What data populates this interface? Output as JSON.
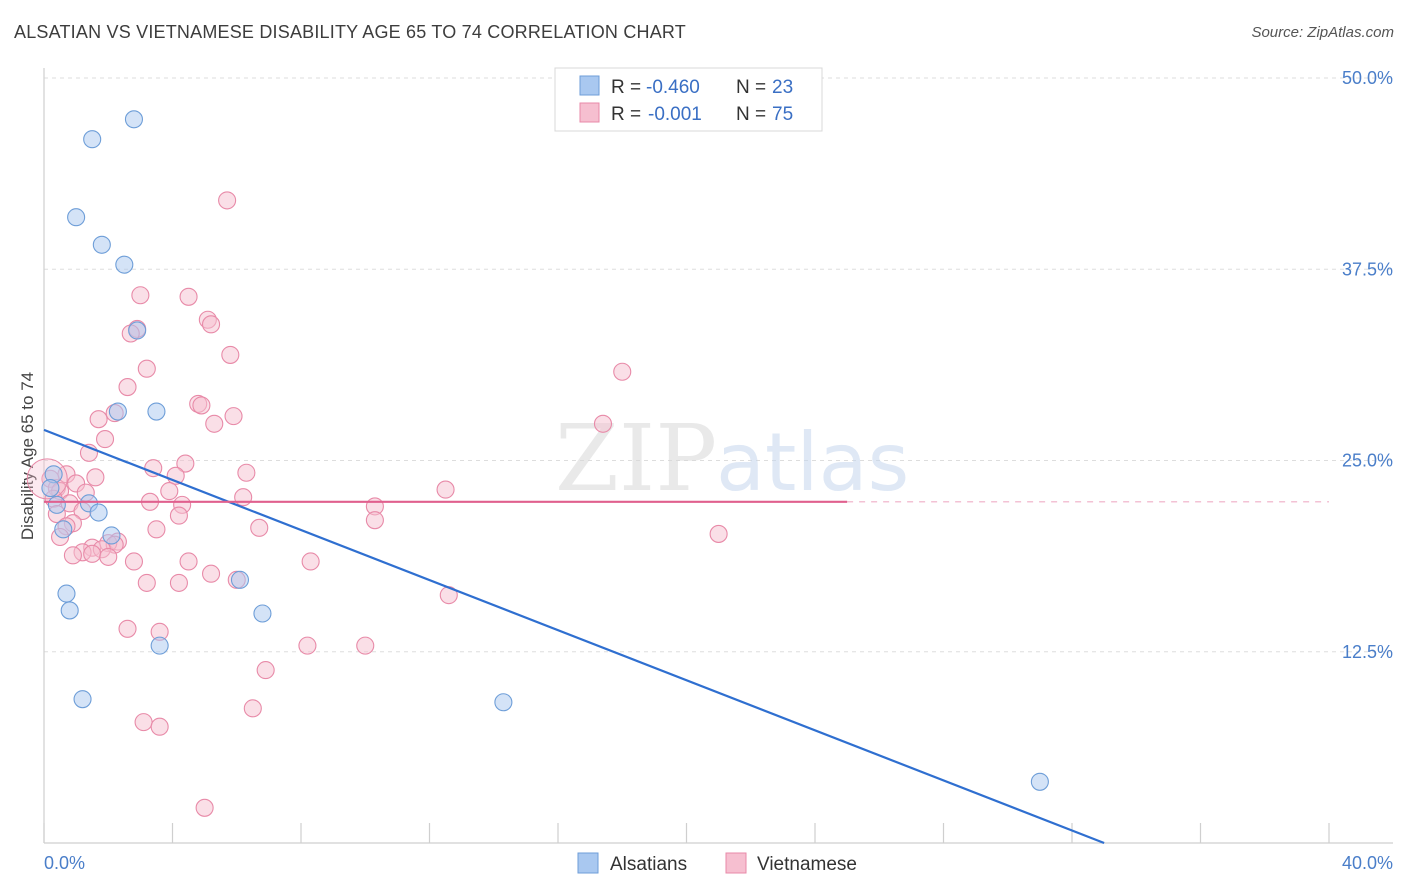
{
  "title": "ALSATIAN VS VIETNAMESE DISABILITY AGE 65 TO 74 CORRELATION CHART",
  "source": "Source: ZipAtlas.com",
  "watermark": {
    "zip": "ZIP",
    "atlas": "atlas"
  },
  "colors": {
    "alsatians_fill": "#a9c8f0",
    "alsatians_stroke": "#6e9ed8",
    "alsatians_line": "#2f6fd0",
    "vietnamese_fill": "#f6bfd0",
    "vietnamese_stroke": "#e88aa8",
    "vietnamese_line": "#e0608e",
    "tick_text": "#4a7ec9",
    "grid": "#dddddd"
  },
  "legend": {
    "rows": [
      {
        "r_label": "R = ",
        "r_value": "-0.460",
        "n_label": "N = ",
        "n_value": "23"
      },
      {
        "r_label": "R = ",
        "r_value": "-0.001",
        "n_label": "N = ",
        "n_value": "75"
      }
    ]
  },
  "chart_data": {
    "type": "scatter",
    "title": "ALSATIAN VS VIETNAMESE DISABILITY AGE 65 TO 74 CORRELATION CHART",
    "xlabel": "",
    "ylabel": "Disability Age 65 to 74",
    "xlim": [
      0,
      40
    ],
    "ylim": [
      0,
      50
    ],
    "x_tick_labels": [
      "0.0%",
      "40.0%"
    ],
    "y_ticks": [
      12.5,
      25.0,
      37.5,
      50.0
    ],
    "y_tick_labels": [
      "12.5%",
      "25.0%",
      "37.5%",
      "50.0%"
    ],
    "grid": true,
    "series": [
      {
        "name": "Alsatians",
        "R": -0.46,
        "N": 23,
        "trend": {
          "x": [
            0,
            33
          ],
          "y": [
            27.0,
            0
          ]
        },
        "points": [
          {
            "x": 1.5,
            "y": 46.0
          },
          {
            "x": 2.8,
            "y": 47.3
          },
          {
            "x": 1.0,
            "y": 40.9
          },
          {
            "x": 1.8,
            "y": 39.1
          },
          {
            "x": 2.5,
            "y": 37.8
          },
          {
            "x": 2.9,
            "y": 33.5
          },
          {
            "x": 2.3,
            "y": 28.2
          },
          {
            "x": 3.5,
            "y": 28.2
          },
          {
            "x": 0.3,
            "y": 24.1
          },
          {
            "x": 0.2,
            "y": 23.2
          },
          {
            "x": 0.4,
            "y": 22.1
          },
          {
            "x": 1.4,
            "y": 22.2
          },
          {
            "x": 1.7,
            "y": 21.6
          },
          {
            "x": 0.6,
            "y": 20.5
          },
          {
            "x": 2.1,
            "y": 20.1
          },
          {
            "x": 6.1,
            "y": 17.2
          },
          {
            "x": 0.7,
            "y": 16.3
          },
          {
            "x": 0.8,
            "y": 15.2
          },
          {
            "x": 6.8,
            "y": 15.0
          },
          {
            "x": 3.6,
            "y": 12.9
          },
          {
            "x": 1.2,
            "y": 9.4
          },
          {
            "x": 14.3,
            "y": 9.2
          },
          {
            "x": 31.0,
            "y": 4.0
          }
        ]
      },
      {
        "name": "Vietnamese",
        "R": -0.001,
        "N": 75,
        "trend": {
          "x": [
            0,
            25
          ],
          "y": [
            22.3,
            22.3
          ]
        },
        "points": [
          {
            "x": 5.7,
            "y": 42.0
          },
          {
            "x": 3.0,
            "y": 35.8
          },
          {
            "x": 4.5,
            "y": 35.7
          },
          {
            "x": 5.1,
            "y": 34.2
          },
          {
            "x": 5.2,
            "y": 33.9
          },
          {
            "x": 2.9,
            "y": 33.6
          },
          {
            "x": 2.7,
            "y": 33.3
          },
          {
            "x": 5.8,
            "y": 31.9
          },
          {
            "x": 3.2,
            "y": 31.0
          },
          {
            "x": 18.0,
            "y": 30.8
          },
          {
            "x": 2.6,
            "y": 29.8
          },
          {
            "x": 4.8,
            "y": 28.7
          },
          {
            "x": 4.9,
            "y": 28.6
          },
          {
            "x": 2.2,
            "y": 28.1
          },
          {
            "x": 5.9,
            "y": 27.9
          },
          {
            "x": 1.7,
            "y": 27.7
          },
          {
            "x": 5.3,
            "y": 27.4
          },
          {
            "x": 17.4,
            "y": 27.4
          },
          {
            "x": 1.9,
            "y": 26.4
          },
          {
            "x": 1.4,
            "y": 25.5
          },
          {
            "x": 4.4,
            "y": 24.8
          },
          {
            "x": 3.4,
            "y": 24.5
          },
          {
            "x": 6.3,
            "y": 24.2
          },
          {
            "x": 0.7,
            "y": 24.1
          },
          {
            "x": 4.1,
            "y": 24.0
          },
          {
            "x": 1.6,
            "y": 23.9
          },
          {
            "x": 0.2,
            "y": 23.8
          },
          {
            "x": 1.0,
            "y": 23.5
          },
          {
            "x": 0.4,
            "y": 23.2
          },
          {
            "x": 0.5,
            "y": 23.0
          },
          {
            "x": 12.5,
            "y": 23.1
          },
          {
            "x": 3.9,
            "y": 23.0
          },
          {
            "x": 1.3,
            "y": 22.9
          },
          {
            "x": 6.2,
            "y": 22.6
          },
          {
            "x": 0.3,
            "y": 22.5
          },
          {
            "x": 3.3,
            "y": 22.3
          },
          {
            "x": 0.8,
            "y": 22.2
          },
          {
            "x": 4.3,
            "y": 22.1
          },
          {
            "x": 10.3,
            "y": 22.0
          },
          {
            "x": 1.2,
            "y": 21.7
          },
          {
            "x": 0.4,
            "y": 21.5
          },
          {
            "x": 4.2,
            "y": 21.4
          },
          {
            "x": 10.3,
            "y": 21.1
          },
          {
            "x": 0.9,
            "y": 20.9
          },
          {
            "x": 0.7,
            "y": 20.7
          },
          {
            "x": 6.7,
            "y": 20.6
          },
          {
            "x": 3.5,
            "y": 20.5
          },
          {
            "x": 21.0,
            "y": 20.2
          },
          {
            "x": 0.5,
            "y": 20.0
          },
          {
            "x": 2.3,
            "y": 19.7
          },
          {
            "x": 2.0,
            "y": 19.6
          },
          {
            "x": 2.2,
            "y": 19.5
          },
          {
            "x": 1.5,
            "y": 19.3
          },
          {
            "x": 1.8,
            "y": 19.2
          },
          {
            "x": 1.2,
            "y": 19.0
          },
          {
            "x": 1.5,
            "y": 18.9
          },
          {
            "x": 0.9,
            "y": 18.8
          },
          {
            "x": 2.0,
            "y": 18.7
          },
          {
            "x": 2.8,
            "y": 18.4
          },
          {
            "x": 4.5,
            "y": 18.4
          },
          {
            "x": 8.3,
            "y": 18.4
          },
          {
            "x": 5.2,
            "y": 17.6
          },
          {
            "x": 6.0,
            "y": 17.2
          },
          {
            "x": 3.2,
            "y": 17.0
          },
          {
            "x": 4.2,
            "y": 17.0
          },
          {
            "x": 12.6,
            "y": 16.2
          },
          {
            "x": 2.6,
            "y": 14.0
          },
          {
            "x": 3.6,
            "y": 13.8
          },
          {
            "x": 8.2,
            "y": 12.9
          },
          {
            "x": 10.0,
            "y": 12.9
          },
          {
            "x": 6.9,
            "y": 11.3
          },
          {
            "x": 6.5,
            "y": 8.8
          },
          {
            "x": 3.1,
            "y": 7.9
          },
          {
            "x": 3.6,
            "y": 7.6
          },
          {
            "x": 5.0,
            "y": 2.3
          }
        ]
      }
    ]
  }
}
